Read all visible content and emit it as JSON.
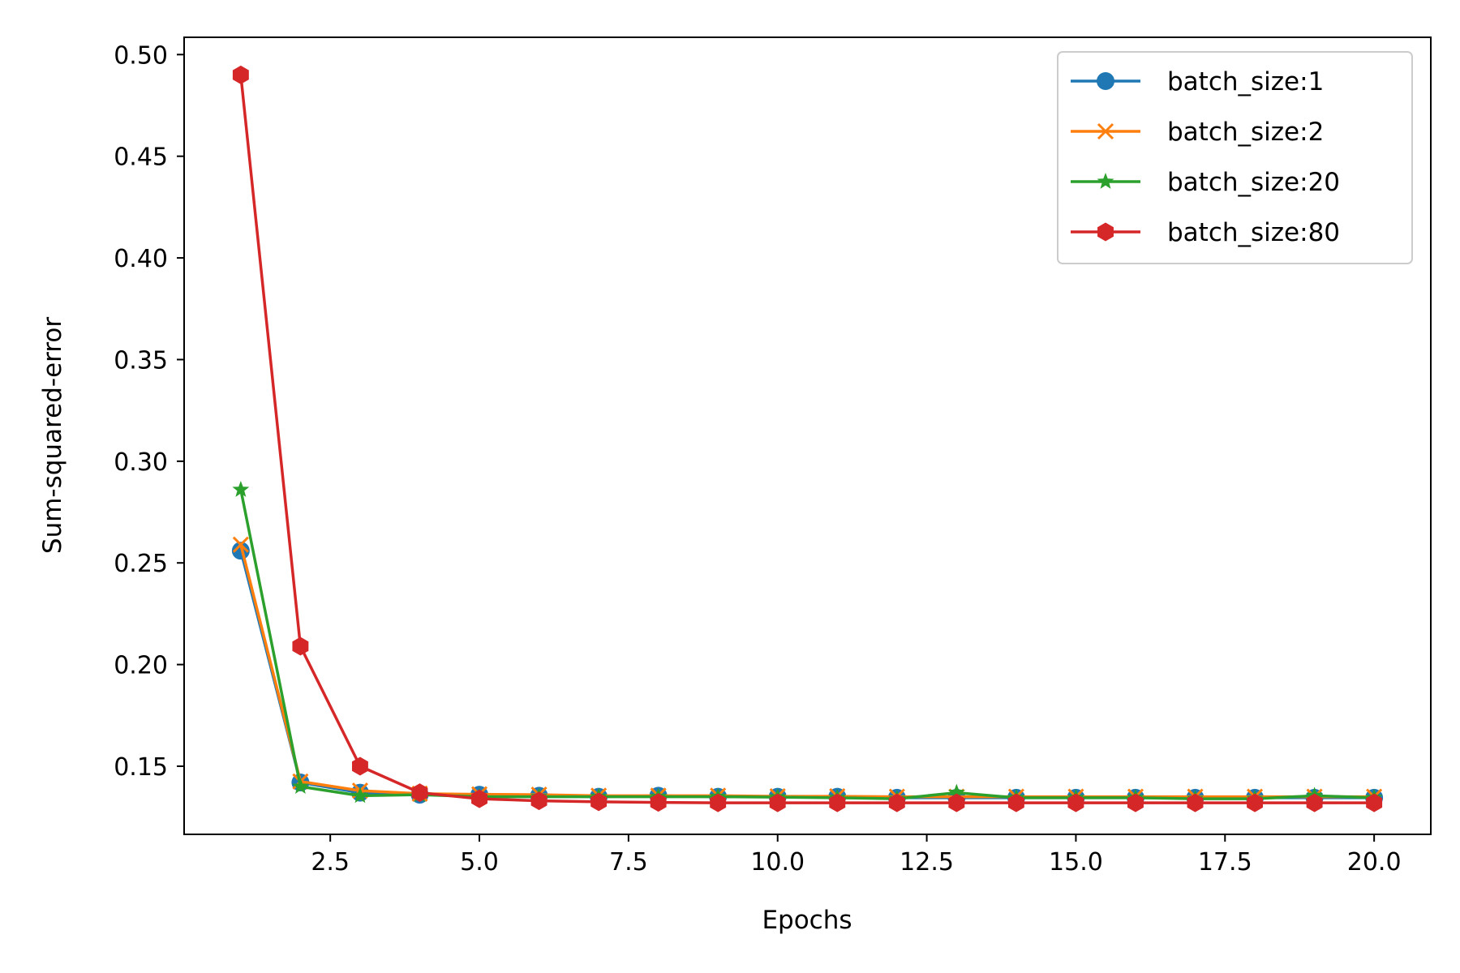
{
  "chart_data": {
    "type": "line",
    "title": "",
    "xlabel": "Epochs",
    "ylabel": "Sum-squared-error",
    "xlim": [
      0.05,
      20.95
    ],
    "ylim": [
      0.1165,
      0.5085
    ],
    "xticks": [
      2.5,
      5.0,
      7.5,
      10.0,
      12.5,
      15.0,
      17.5,
      20.0
    ],
    "xtick_labels": [
      "2.5",
      "5.0",
      "7.5",
      "10.0",
      "12.5",
      "15.0",
      "17.5",
      "20.0"
    ],
    "yticks": [
      0.15,
      0.2,
      0.25,
      0.3,
      0.35,
      0.4,
      0.45,
      0.5
    ],
    "ytick_labels": [
      "0.15",
      "0.20",
      "0.25",
      "0.30",
      "0.35",
      "0.40",
      "0.45",
      "0.50"
    ],
    "grid": false,
    "legend_position": "top-right",
    "x": [
      1,
      2,
      3,
      4,
      5,
      6,
      7,
      8,
      9,
      10,
      11,
      12,
      13,
      14,
      15,
      16,
      17,
      18,
      19,
      20
    ],
    "series": [
      {
        "name": "batch_size:1",
        "color": "#1f77b4",
        "marker": "circle",
        "values": [
          0.256,
          0.142,
          0.137,
          0.136,
          0.136,
          0.1355,
          0.135,
          0.1355,
          0.135,
          0.135,
          0.135,
          0.1345,
          0.1345,
          0.1345,
          0.1345,
          0.1345,
          0.1345,
          0.1345,
          0.1345,
          0.1345
        ]
      },
      {
        "name": "batch_size:2",
        "color": "#ff7f0e",
        "marker": "x",
        "values": [
          0.259,
          0.1425,
          0.138,
          0.1365,
          0.1362,
          0.136,
          0.1355,
          0.1355,
          0.1355,
          0.1352,
          0.1352,
          0.135,
          0.135,
          0.135,
          0.135,
          0.135,
          0.135,
          0.135,
          0.135,
          0.135
        ]
      },
      {
        "name": "batch_size:20",
        "color": "#2ca02c",
        "marker": "star",
        "values": [
          0.286,
          0.14,
          0.1355,
          0.136,
          0.135,
          0.135,
          0.135,
          0.135,
          0.135,
          0.1348,
          0.1345,
          0.134,
          0.137,
          0.1345,
          0.1345,
          0.1345,
          0.134,
          0.134,
          0.1355,
          0.1345
        ]
      },
      {
        "name": "batch_size:80",
        "color": "#d62728",
        "marker": "hexagon",
        "values": [
          0.49,
          0.209,
          0.15,
          0.137,
          0.134,
          0.133,
          0.1325,
          0.1322,
          0.132,
          0.132,
          0.132,
          0.132,
          0.132,
          0.132,
          0.132,
          0.132,
          0.132,
          0.132,
          0.132,
          0.132
        ]
      }
    ]
  }
}
